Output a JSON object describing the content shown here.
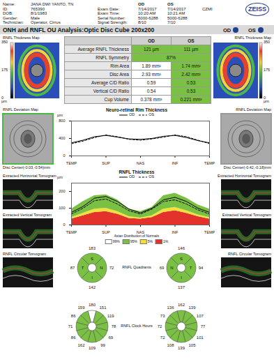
{
  "header": {
    "logo": "ZEISS",
    "site": "CZMI",
    "fields": [
      {
        "label": "Name:",
        "value": "JANA DWI YANTO, TN"
      },
      {
        "label": "ID:",
        "value": "765390"
      },
      {
        "label": "DOB:",
        "value": "8/1/1983"
      },
      {
        "label": "Gender:",
        "value": "Male"
      },
      {
        "label": "Technician:",
        "value": "Operator, Cirrus"
      }
    ],
    "eye_columns": [
      "OD",
      "OS"
    ],
    "exam_fields": [
      {
        "label": "Exam Date:",
        "OD": "7/14/2017",
        "OS": "7/14/2017"
      },
      {
        "label": "Exam Time:",
        "OD": "10:20 AM",
        "OS": "10:21 AM"
      },
      {
        "label": "Serial Number:",
        "OD": "5000-6288",
        "OS": "5000-6288"
      },
      {
        "label": "Signal Strength:",
        "OD": "8/10",
        "OS": "7/10"
      }
    ]
  },
  "title": "ONH and RNFL OU Analysis:Optic Disc Cube 200x200",
  "eyes": [
    {
      "name": "OD",
      "color": "#1f3f8f"
    },
    {
      "name": "OS",
      "color": "#1f3f8f"
    }
  ],
  "thickness_map": {
    "title": "RNFL Thickness Map",
    "unit": "µm",
    "ticks": [
      350,
      175,
      0
    ]
  },
  "table": {
    "columns": [
      "OD",
      "OS"
    ],
    "rows": [
      {
        "label": "Average RNFL Thickness",
        "values": [
          "121 µm",
          "111 µm"
        ],
        "colors": [
          "#7ac143",
          "#7ac143"
        ]
      },
      {
        "label": "RNFL Symmetry",
        "values": [
          "87%"
        ],
        "colors": [
          "#7ac143"
        ]
      },
      {
        "label": "Rim Area",
        "values": [
          "1.89 mm²",
          "1.74 mm²"
        ],
        "colors": [
          "#ffffff",
          "#7ac143"
        ]
      },
      {
        "label": "Disc Area",
        "values": [
          "2.93 mm²",
          "2.42 mm²"
        ],
        "colors": [
          "#ffffff",
          "#7ac143"
        ]
      },
      {
        "label": "Average C/D Ratio",
        "values": [
          "0.59",
          "0.53"
        ],
        "colors": [
          "#ffffff",
          "#7ac143"
        ]
      },
      {
        "label": "Vertical C/D Ratio",
        "values": [
          "0.54",
          "0.53"
        ],
        "colors": [
          "#ffffff",
          "#7ac143"
        ]
      },
      {
        "label": "Cup Volume",
        "values": [
          "0.378 mm³",
          "0.221 mm³"
        ],
        "colors": [
          "#ffffff",
          "#7ac143"
        ]
      }
    ]
  },
  "deviation_map": {
    "title": "RNFL Deviation Map",
    "disc_center": [
      "Disc Center(-0.03,-0.54)mm",
      "Disc Center(-0.42,-0.18)mm"
    ]
  },
  "tomograms": [
    "Extracted Horizontal Tomogram",
    "Extracted Vertical Tomogram",
    "RNFL Circular Tomogram"
  ],
  "chart_data": [
    {
      "type": "line",
      "title": "Neuro-retinal Rim Thickness",
      "y_label": "µm",
      "legend": "top",
      "grid": false,
      "x": [
        0,
        30,
        60,
        90,
        120,
        150,
        180,
        210,
        240,
        270,
        300,
        330,
        360
      ],
      "xlim": [
        0,
        360
      ],
      "xticks": [
        {
          "value": 0,
          "label": "TEMP"
        },
        {
          "value": 90,
          "label": "SUP"
        },
        {
          "value": 180,
          "label": "NAS"
        },
        {
          "value": 270,
          "label": "INF"
        },
        {
          "value": 360,
          "label": "TEMP"
        }
      ],
      "ylim": [
        0,
        800
      ],
      "yticks": [
        0,
        400,
        800
      ],
      "series": [
        {
          "name": "OD",
          "color": "#000000",
          "line_style": "solid",
          "values": [
            300,
            360,
            440,
            470,
            430,
            390,
            380,
            400,
            450,
            470,
            420,
            350,
            300
          ]
        },
        {
          "name": "OS",
          "color": "#000000",
          "line_style": "dashed",
          "values": [
            280,
            340,
            420,
            480,
            440,
            380,
            360,
            390,
            430,
            480,
            440,
            360,
            280
          ]
        }
      ]
    },
    {
      "type": "line",
      "title": "RNFL Thickness",
      "y_label": "µm",
      "legend": "top",
      "grid": false,
      "x": [
        0,
        30,
        60,
        90,
        120,
        150,
        180,
        210,
        240,
        270,
        300,
        330,
        360
      ],
      "xlim": [
        0,
        360
      ],
      "xticks": [
        {
          "value": 0,
          "label": "TEMP"
        },
        {
          "value": 90,
          "label": "SUP"
        },
        {
          "value": 180,
          "label": "NAS"
        },
        {
          "value": 270,
          "label": "INF"
        },
        {
          "value": 360,
          "label": "TEMP"
        }
      ],
      "ylim": [
        0,
        250
      ],
      "yticks": [
        0,
        100,
        200
      ],
      "normative": {
        "p1": [
          35,
          55,
          75,
          80,
          65,
          40,
          35,
          45,
          75,
          85,
          70,
          50,
          35
        ],
        "p5": [
          45,
          70,
          95,
          100,
          80,
          50,
          42,
          55,
          95,
          105,
          85,
          60,
          45
        ],
        "p95": [
          95,
          140,
          175,
          180,
          150,
          95,
          80,
          105,
          175,
          190,
          160,
          120,
          95
        ],
        "colors": [
          "#e2322b",
          "#f5e03b",
          "#7ac143"
        ]
      },
      "series": [
        {
          "name": "OD",
          "color": "#000000",
          "line_style": "solid",
          "values": [
            75,
            110,
            160,
            170,
            140,
            95,
            72,
            100,
            150,
            165,
            140,
            100,
            75
          ]
        },
        {
          "name": "OS",
          "color": "#000000",
          "line_style": "dashed",
          "values": [
            65,
            100,
            145,
            155,
            125,
            85,
            65,
            95,
            140,
            150,
            125,
            90,
            65
          ]
        }
      ]
    }
  ],
  "normal_distribution": {
    "title": "Asian Distribution of Normals",
    "labels": [
      "99%",
      "95%",
      "5%",
      "1%"
    ],
    "colors": [
      "#ffffff",
      "#7ac143",
      "#f5e03b",
      "#e2322b"
    ]
  },
  "quadrants": {
    "title": "RNFL Quadrants",
    "eyes": [
      {
        "labels": [
          "S",
          "N",
          "I",
          "T"
        ],
        "values": [
          183,
          72,
          142,
          87
        ],
        "colors": [
          "#7ac143",
          "#7ac143",
          "#7ac143",
          "#7ac143"
        ]
      },
      {
        "labels": [
          "S",
          "T",
          "I",
          "N"
        ],
        "values": [
          146,
          94,
          137,
          69
        ],
        "colors": [
          "#7ac143",
          "#7ac143",
          "#7ac143",
          "#7ac143"
        ]
      }
    ]
  },
  "clock_hours": {
    "title": "RNFL Clock Hours",
    "eyes": [
      {
        "values": [
          180,
          151,
          119,
          78,
          69,
          99,
          109,
          162,
          86,
          71,
          86,
          159
        ],
        "colors": [
          "#ffffff",
          "#7ac143",
          "#7ac143",
          "#7ac143",
          "#7ac143",
          "#7ac143",
          "#7ac143",
          "#7ac143",
          "#7ac143",
          "#7ac143",
          "#7ac143",
          "#7ac143"
        ]
      },
      {
        "values": [
          162,
          139,
          107,
          77,
          101,
          105,
          139,
          108,
          72,
          72,
          73,
          136
        ],
        "colors": [
          "#7ac143",
          "#7ac143",
          "#7ac143",
          "#7ac143",
          "#7ac143",
          "#7ac143",
          "#7ac143",
          "#7ac143",
          "#7ac143",
          "#7ac143",
          "#7ac143",
          "#7ac143"
        ]
      }
    ]
  }
}
